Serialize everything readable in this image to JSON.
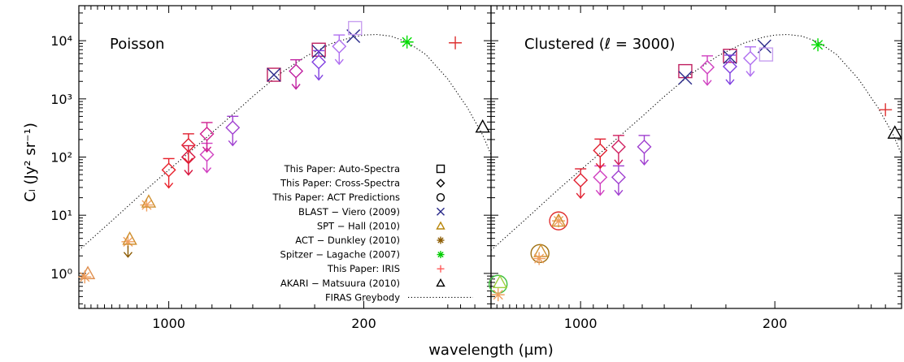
{
  "chart_data": {
    "type": "scatter",
    "xlabel": "wavelength (μm)",
    "ylabel": "Cₗ (Jy² sr⁻¹)",
    "x_scale": "log",
    "y_scale": "log",
    "x_direction": "decreasing",
    "xlim": [
      2100,
      70
    ],
    "ylim": [
      0.25,
      40000
    ],
    "x_ticks": [
      1000,
      200
    ],
    "y_ticks": [
      "10⁰",
      "10¹",
      "10²",
      "10³",
      "10⁴"
    ],
    "y_tick_values": [
      1,
      10,
      100,
      1000,
      10000
    ],
    "grid": false,
    "legend_location": "lower-right of left panel",
    "legend": [
      {
        "label": "This Paper: Auto-Spectra",
        "marker": "square",
        "color": "#000000"
      },
      {
        "label": "This Paper: Cross-Spectra",
        "marker": "diamond",
        "color": "#000000"
      },
      {
        "label": "This Paper: ACT Predictions",
        "marker": "circle",
        "color": "#000000"
      },
      {
        "label": "BLAST − Viero (2009)",
        "marker": "x",
        "color": "#2a2a8a"
      },
      {
        "label": "SPT − Hall (2010)",
        "marker": "triangle",
        "color": "#b8860b"
      },
      {
        "label": "ACT − Dunkley (2010)",
        "marker": "asterisk",
        "color": "#8b5a00"
      },
      {
        "label": "Spitzer − Lagache (2007)",
        "marker": "asterisk",
        "color": "#00cc00"
      },
      {
        "label": "This Paper: IRIS",
        "marker": "plus",
        "color": "#ff5a5a"
      },
      {
        "label": "AKARI − Matsuura (2010)",
        "marker": "triangle",
        "color": "#000000"
      },
      {
        "label": "FIRAS Greybody",
        "marker": "dotted-line",
        "color": "#000000"
      }
    ],
    "panels": [
      {
        "title": "Poisson",
        "points": [
          {
            "marker": "asterisk",
            "x": 2000,
            "y": 0.87,
            "color": "#f0a060"
          },
          {
            "marker": "triangle",
            "x": 1950,
            "y": 1.0,
            "color": "#e09050"
          },
          {
            "marker": "asterisk",
            "x": 1400,
            "y": 3.5,
            "color": "#f0a060"
          },
          {
            "marker": "triangle",
            "x": 1380,
            "y": 3.9,
            "color": "#d09030"
          },
          {
            "marker": "arrow",
            "x": 1400,
            "y": 3.0,
            "color": "#8b5a00"
          },
          {
            "marker": "asterisk",
            "x": 1200,
            "y": 15,
            "color": "#f0a060"
          },
          {
            "marker": "triangle",
            "x": 1180,
            "y": 17,
            "color": "#d09030"
          },
          {
            "marker": "diamond-up",
            "x": 1000,
            "y": 60,
            "color": "#e8202a"
          },
          {
            "marker": "diamond-up",
            "x": 850,
            "y": 100,
            "color": "#d81840"
          },
          {
            "marker": "diamond-up",
            "x": 850,
            "y": 160,
            "color": "#e02030"
          },
          {
            "marker": "diamond-up",
            "x": 730,
            "y": 110,
            "color": "#d040c0"
          },
          {
            "marker": "diamond-up",
            "x": 730,
            "y": 250,
            "color": "#d02090"
          },
          {
            "marker": "diamond-up",
            "x": 590,
            "y": 320,
            "color": "#a040d0"
          },
          {
            "marker": "square",
            "x": 420,
            "y": 2600,
            "color": "#c02060"
          },
          {
            "marker": "x",
            "x": 420,
            "y": 2600,
            "color": "#2a2a8a"
          },
          {
            "marker": "diamond-up",
            "x": 350,
            "y": 3000,
            "color": "#c020a0"
          },
          {
            "marker": "square",
            "x": 290,
            "y": 7000,
            "color": "#c02060"
          },
          {
            "marker": "x",
            "x": 290,
            "y": 6500,
            "color": "#2a2a8a"
          },
          {
            "marker": "diamond-up",
            "x": 290,
            "y": 4300,
            "color": "#8040e0"
          },
          {
            "marker": "diamond-up",
            "x": 245,
            "y": 8000,
            "color": "#b070f0"
          },
          {
            "marker": "x",
            "x": 218,
            "y": 12000,
            "color": "#2a2a8a"
          },
          {
            "marker": "square",
            "x": 215,
            "y": 16500,
            "color": "#c8a0f0"
          },
          {
            "marker": "asterisk",
            "x": 140,
            "y": 9500,
            "color": "#00dd00"
          },
          {
            "marker": "plus",
            "x": 94,
            "y": 9200,
            "color": "#dd3030"
          },
          {
            "marker": "triangle",
            "x": 75,
            "y": 330,
            "color": "#000000"
          }
        ]
      },
      {
        "title": "Clustered (ℓ = 3000)",
        "points": [
          {
            "marker": "circle",
            "x": 1980,
            "y": 0.65,
            "color": "#40c040"
          },
          {
            "marker": "triangle",
            "x": 1950,
            "y": 0.7,
            "color": "#a0d040"
          },
          {
            "marker": "asterisk",
            "x": 1980,
            "y": 0.43,
            "color": "#f0a060"
          },
          {
            "marker": "circle",
            "x": 1400,
            "y": 2.2,
            "color": "#a07010"
          },
          {
            "marker": "triangle",
            "x": 1390,
            "y": 2.4,
            "color": "#d09030"
          },
          {
            "marker": "asterisk",
            "x": 1410,
            "y": 1.8,
            "color": "#f0a060"
          },
          {
            "marker": "circle",
            "x": 1200,
            "y": 8,
            "color": "#e03030"
          },
          {
            "marker": "asterisk",
            "x": 1200,
            "y": 8,
            "color": "#f0a060"
          },
          {
            "marker": "triangle",
            "x": 1200,
            "y": 8,
            "color": "#d09030"
          },
          {
            "marker": "diamond-up",
            "x": 1000,
            "y": 40,
            "color": "#e02030"
          },
          {
            "marker": "diamond-up",
            "x": 850,
            "y": 45,
            "color": "#d040c0"
          },
          {
            "marker": "diamond-up",
            "x": 850,
            "y": 130,
            "color": "#e02030"
          },
          {
            "marker": "diamond-up",
            "x": 730,
            "y": 45,
            "color": "#a040d0"
          },
          {
            "marker": "diamond-up",
            "x": 730,
            "y": 150,
            "color": "#d02060"
          },
          {
            "marker": "diamond-up",
            "x": 590,
            "y": 150,
            "color": "#a040d0"
          },
          {
            "marker": "square",
            "x": 420,
            "y": 3000,
            "color": "#c02060"
          },
          {
            "marker": "x",
            "x": 420,
            "y": 2300,
            "color": "#2a2a8a"
          },
          {
            "marker": "diamond-up",
            "x": 350,
            "y": 3500,
            "color": "#d040c0"
          },
          {
            "marker": "square",
            "x": 290,
            "y": 5500,
            "color": "#c02060"
          },
          {
            "marker": "x",
            "x": 290,
            "y": 5200,
            "color": "#2a2a8a"
          },
          {
            "marker": "diamond-up",
            "x": 290,
            "y": 3600,
            "color": "#8040e0"
          },
          {
            "marker": "diamond-up",
            "x": 245,
            "y": 5000,
            "color": "#b070f0"
          },
          {
            "marker": "x",
            "x": 218,
            "y": 8000,
            "color": "#2a2a8a"
          },
          {
            "marker": "square",
            "x": 215,
            "y": 5800,
            "color": "#c8a0f0"
          },
          {
            "marker": "asterisk",
            "x": 140,
            "y": 8500,
            "color": "#00dd00"
          },
          {
            "marker": "plus",
            "x": 80,
            "y": 650,
            "color": "#dd3030"
          },
          {
            "marker": "triangle",
            "x": 74,
            "y": 260,
            "color": "#000000"
          }
        ]
      }
    ],
    "firas_greybody": {
      "x": [
        2100,
        1600,
        1200,
        1000,
        800,
        600,
        500,
        400,
        320,
        260,
        220,
        200,
        180,
        160,
        140,
        120,
        100,
        85,
        75,
        70
      ],
      "y": [
        2.5,
        8,
        28,
        60,
        150,
        500,
        1100,
        2700,
        5500,
        9000,
        11500,
        12500,
        12800,
        12000,
        9500,
        5800,
        2200,
        700,
        240,
        110
      ]
    }
  }
}
